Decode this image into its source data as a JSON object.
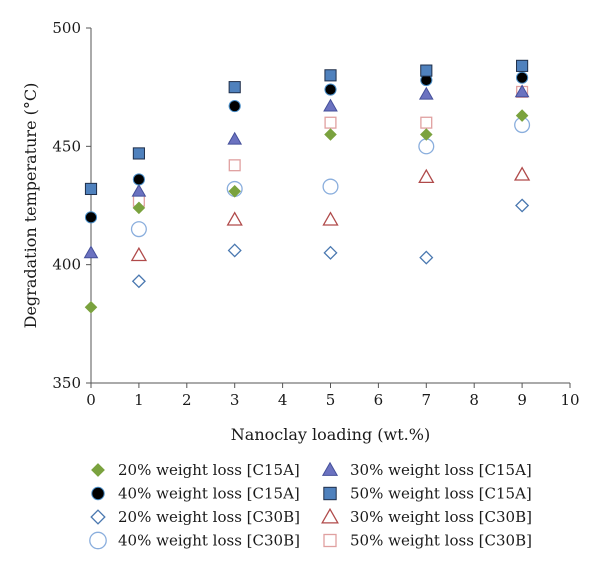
{
  "chart_data": {
    "type": "scatter",
    "xlabel": "Nanoclay loading (wt.%)",
    "ylabel": "Degradation temperature (°C)",
    "xlim": [
      0,
      10
    ],
    "ylim": [
      350,
      500
    ],
    "x_ticks": [
      0,
      1,
      2,
      3,
      4,
      5,
      6,
      7,
      8,
      9,
      10
    ],
    "y_ticks": [
      350,
      400,
      450,
      500
    ],
    "grid": false,
    "legend_position": "bottom",
    "series": [
      {
        "name": "20% weight loss [C15A]",
        "marker": "diamond",
        "filled": true,
        "color": "#7aa23e",
        "stroke": "#7aa23e",
        "x": [
          0,
          1,
          3,
          5,
          7,
          9
        ],
        "y": [
          382,
          424,
          431,
          455,
          455,
          463
        ]
      },
      {
        "name": "30% weight loss [C15A]",
        "marker": "triangle",
        "filled": true,
        "color": "#6b72c0",
        "stroke": "#45509a",
        "x": [
          0,
          1,
          3,
          5,
          7,
          9
        ],
        "y": [
          405,
          431,
          453,
          467,
          472,
          473
        ]
      },
      {
        "name": "40% weight loss [C15A]",
        "marker": "circle",
        "filled": true,
        "color": "#000000",
        "stroke": "#4a8ec8",
        "x": [
          0,
          1,
          3,
          5,
          7,
          9
        ],
        "y": [
          420,
          436,
          467,
          474,
          478,
          479
        ]
      },
      {
        "name": "50% weight loss [C15A]",
        "marker": "square",
        "filled": true,
        "color": "#4f81bd",
        "stroke": "#1f2f4a",
        "x": [
          0,
          1,
          3,
          5,
          7,
          9
        ],
        "y": [
          432,
          447,
          475,
          480,
          482,
          484
        ]
      },
      {
        "name": "20% weight loss [C30B]",
        "marker": "diamond",
        "filled": false,
        "color": "none",
        "stroke": "#4a78b0",
        "x": [
          1,
          3,
          5,
          7,
          9
        ],
        "y": [
          393,
          406,
          405,
          403,
          425
        ]
      },
      {
        "name": "30% weight loss [C30B]",
        "marker": "triangle",
        "filled": false,
        "color": "none",
        "stroke": "#b04a4a",
        "x": [
          1,
          3,
          5,
          7,
          9
        ],
        "y": [
          404,
          419,
          419,
          437,
          438
        ]
      },
      {
        "name": "40% weight loss [C30B]",
        "marker": "circle",
        "filled": false,
        "color": "none",
        "stroke": "#8aaedd",
        "x": [
          1,
          3,
          5,
          7,
          9
        ],
        "y": [
          415,
          432,
          433,
          450,
          459
        ]
      },
      {
        "name": "50% weight loss [C30B]",
        "marker": "square",
        "filled": false,
        "color": "none",
        "stroke": "#e0a0a0",
        "x": [
          1,
          3,
          5,
          7,
          9
        ],
        "y": [
          427,
          442,
          460,
          460,
          473
        ]
      }
    ],
    "legend_order": [
      0,
      1,
      2,
      3,
      4,
      5,
      6,
      7
    ]
  }
}
